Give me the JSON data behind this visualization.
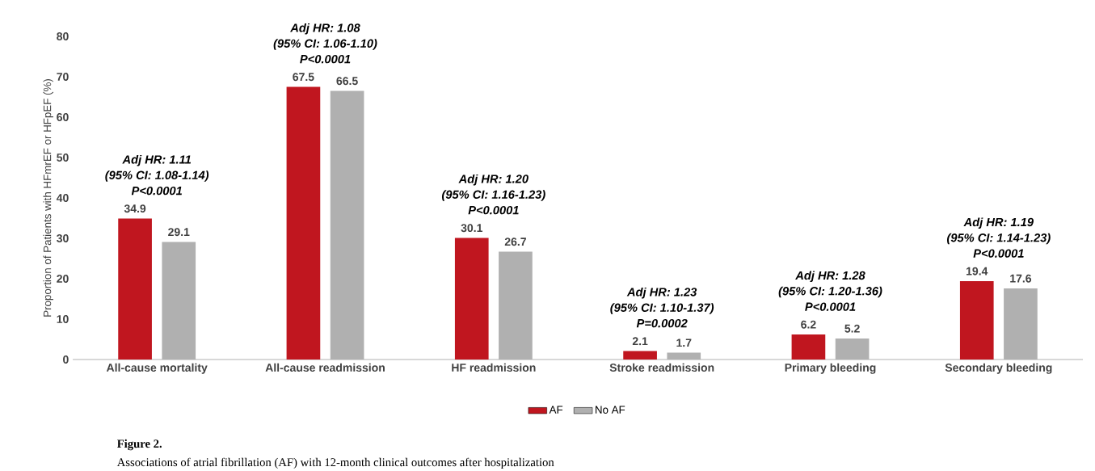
{
  "chart_data": {
    "type": "bar",
    "ylabel": "Proportion of Patients with HFmrEF or HFpEF (%)",
    "categories": [
      "All-cause mortality",
      "All-cause readmission",
      "HF readmission",
      "Stroke readmission",
      "Primary bleeding",
      "Secondary bleeding"
    ],
    "series": [
      {
        "name": "AF",
        "color": "#c0161f",
        "values": [
          34.9,
          67.5,
          30.1,
          2.1,
          6.2,
          19.4
        ]
      },
      {
        "name": "No AF",
        "color": "#b0b0b0",
        "values": [
          29.1,
          66.5,
          26.7,
          1.7,
          5.2,
          17.6
        ]
      }
    ],
    "ylim": [
      0,
      80
    ],
    "yticks": [
      0,
      10,
      20,
      30,
      40,
      50,
      60,
      70,
      80
    ],
    "data_labels": true,
    "legend": "bottom",
    "grid": false,
    "annotations": [
      "Adj HR: 1.11",
      "(95% CI: 1.08-1.14)",
      "P<0.0001",
      "Adj HR: 1.08",
      "(95% CI: 1.06-1.10)",
      "P<0.0001",
      "Adj HR: 1.20",
      "(95% CI: 1.16-1.23)",
      "P<0.0001",
      "Adj HR: 1.23",
      "(95% CI: 1.10-1.37)",
      "P=0.0002",
      "Adj HR: 1.28",
      "(95% CI: 1.20-1.36)",
      "P<0.0001",
      "Adj HR: 1.19",
      "(95% CI: 1.14-1.23)",
      "P<0.0001",
      "Figure 2.",
      "Associations of atrial fibrillation (AF) with 12-month clinical outcomes after hospitalization"
    ]
  }
}
